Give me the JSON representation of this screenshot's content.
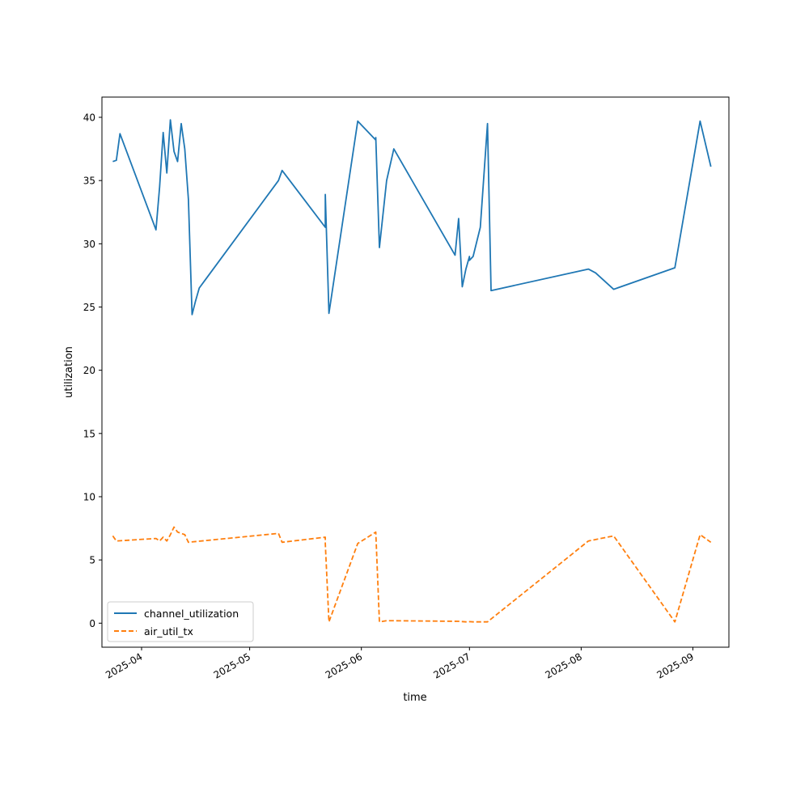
{
  "chart_data": {
    "type": "line",
    "title": "",
    "xlabel": "time",
    "ylabel": "utilization",
    "x_axis_type": "date",
    "xlim": [
      "2025-03-21",
      "2025-09-11"
    ],
    "ylim": [
      -1.9,
      41.6
    ],
    "x_ticks": [
      {
        "date": "2025-04-01",
        "label": "2025-04"
      },
      {
        "date": "2025-05-01",
        "label": "2025-05"
      },
      {
        "date": "2025-06-01",
        "label": "2025-06"
      },
      {
        "date": "2025-07-01",
        "label": "2025-07"
      },
      {
        "date": "2025-08-01",
        "label": "2025-08"
      },
      {
        "date": "2025-09-01",
        "label": "2025-09"
      }
    ],
    "y_ticks": [
      0,
      5,
      10,
      15,
      20,
      25,
      30,
      35,
      40
    ],
    "grid": false,
    "legend": "lower-left",
    "series": [
      {
        "name": "channel_utilization",
        "color": "#1f77b4",
        "dash": "solid",
        "x": [
          "2025-03-24",
          "2025-03-25",
          "2025-03-26",
          "2025-04-05",
          "2025-04-06",
          "2025-04-07",
          "2025-04-08",
          "2025-04-09",
          "2025-04-10",
          "2025-04-11",
          "2025-04-12",
          "2025-04-13",
          "2025-04-14",
          "2025-04-15",
          "2025-04-16",
          "2025-04-17",
          "2025-05-09",
          "2025-05-10",
          "2025-05-22",
          "2025-05-22",
          "2025-05-23",
          "2025-05-31",
          "2025-06-05",
          "2025-06-05",
          "2025-06-06",
          "2025-06-08",
          "2025-06-10",
          "2025-06-27",
          "2025-06-28",
          "2025-06-29",
          "2025-06-30",
          "2025-07-01",
          "2025-07-01",
          "2025-07-02",
          "2025-07-04",
          "2025-07-06",
          "2025-07-07",
          "2025-08-03",
          "2025-08-05",
          "2025-08-10",
          "2025-08-27",
          "2025-09-03",
          "2025-09-06"
        ],
        "values": [
          36.5,
          36.6,
          38.7,
          31.1,
          34.5,
          38.8,
          35.6,
          39.8,
          37.3,
          36.5,
          39.5,
          37.5,
          33.5,
          24.4,
          25.5,
          26.5,
          35.0,
          35.8,
          31.3,
          33.9,
          24.5,
          39.7,
          38.2,
          38.4,
          29.7,
          35.0,
          37.5,
          29.1,
          32.0,
          26.6,
          28.0,
          29.0,
          28.7,
          29.0,
          31.3,
          39.5,
          26.3,
          28.0,
          27.7,
          26.4,
          28.1,
          39.7,
          36.1
        ]
      },
      {
        "name": "air_util_tx",
        "color": "#ff7f0e",
        "dash": "dashed",
        "x": [
          "2025-03-24",
          "2025-03-25",
          "2025-04-05",
          "2025-04-06",
          "2025-04-07",
          "2025-04-08",
          "2025-04-09",
          "2025-04-10",
          "2025-04-11",
          "2025-04-12",
          "2025-04-13",
          "2025-04-14",
          "2025-05-09",
          "2025-05-10",
          "2025-05-22",
          "2025-05-22",
          "2025-05-23",
          "2025-05-31",
          "2025-06-05",
          "2025-06-06",
          "2025-06-08",
          "2025-06-28",
          "2025-06-30",
          "2025-07-01",
          "2025-07-02",
          "2025-07-06",
          "2025-08-03",
          "2025-08-10",
          "2025-08-27",
          "2025-09-03",
          "2025-09-06"
        ],
        "values": [
          6.9,
          6.5,
          6.7,
          6.5,
          6.8,
          6.5,
          7.0,
          7.6,
          7.2,
          7.1,
          7.0,
          6.4,
          7.1,
          6.4,
          6.8,
          6.3,
          0.1,
          6.3,
          7.2,
          0.1,
          0.2,
          0.15,
          0.1,
          0.12,
          0.1,
          0.1,
          6.5,
          6.9,
          0.1,
          7.0,
          6.4
        ]
      }
    ]
  }
}
